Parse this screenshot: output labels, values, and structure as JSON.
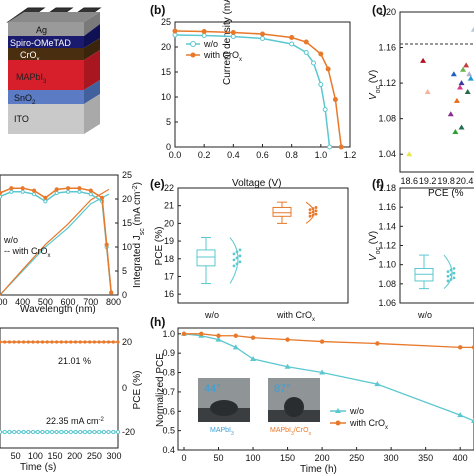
{
  "panels": {
    "a": {
      "layers": [
        "Ag",
        "Spiro-OMeTAD",
        "CrO",
        "x",
        "MAPbI",
        "3",
        "SnO",
        "2",
        "ITO"
      ]
    },
    "b": {
      "letter": "(b)",
      "ylabel": "Current density (mA cm",
      "ylabel_sup": "-2",
      "ylabel_close": ")",
      "xlabel": "Voltage (V)",
      "legend": [
        "w/o",
        "with CrO",
        "x"
      ],
      "y_ticks": [
        "0",
        "5",
        "10",
        "15",
        "20",
        "25"
      ],
      "x_ticks": [
        "0.0",
        "0.2",
        "0.4",
        "0.6",
        "0.8",
        "1.0",
        "1.2"
      ]
    },
    "c": {
      "letter": "(c)",
      "ylabel": "V",
      "ylabel_sub": "oc",
      "ylabel_unit": " (V)",
      "xlabel": "PCE (%",
      "y_ticks": [
        "1.04",
        "1.08",
        "1.12",
        "1.16",
        "1.20"
      ],
      "x_ticks": [
        "18.6",
        "19.2",
        "19.8",
        "20.4",
        "2"
      ]
    },
    "d": {
      "legend": [
        "w/o",
        "with CrO",
        "x"
      ],
      "xlabel": "Wavelength (nm)",
      "x_ticks": [
        "300",
        "400",
        "500",
        "600",
        "700",
        "800"
      ],
      "right_ticks": [
        "0",
        "5",
        "10",
        "15",
        "20",
        "25"
      ],
      "right_label": "Integrated J",
      "right_label_sub": "sc",
      "right_label_unit": " (mA cm",
      "right_label_sup": "-2",
      "right_label_close": ")"
    },
    "e": {
      "letter": "(e)",
      "ylabel": "PCE (%)",
      "y_ticks": [
        "16",
        "17",
        "18",
        "19",
        "20",
        "21",
        "22"
      ],
      "categories": [
        "w/o",
        "with CrO",
        "x"
      ]
    },
    "f": {
      "letter": "(f)",
      "ylabel": "V",
      "ylabel_sub": "oc",
      "ylabel_unit": " (V)",
      "y_ticks": [
        "1.06",
        "1.08",
        "1.10",
        "1.12",
        "1.14",
        "1.16",
        "1.18"
      ],
      "categories": [
        "w/o"
      ]
    },
    "g": {
      "xlabel": "Time (s)",
      "x_ticks": [
        "50",
        "100",
        "150",
        "200",
        "250",
        "300"
      ],
      "right_label": "PCE (%)",
      "right_ticks": [
        "20",
        "0",
        "-20"
      ],
      "annot_pce": "21.01 %",
      "annot_jsc": "22.35 mA cm",
      "annot_jsc_sup": "-2"
    },
    "h": {
      "letter": "(h)",
      "ylabel": "Normalized PCE",
      "xlabel": "Time (h)",
      "x_ticks": [
        "0",
        "50",
        "100",
        "150",
        "200",
        "250",
        "300",
        "350",
        "400"
      ],
      "y_ticks": [
        "0.4",
        "0.5",
        "0.6",
        "0.7",
        "0.8",
        "0.9",
        "1.0"
      ],
      "legend": [
        "w/o",
        "with CrO",
        "x"
      ],
      "angle1": "44°",
      "angle2": "87°",
      "img1_label": "MAPbI",
      "img1_sub": "3",
      "img2_label": "MAPbI",
      "img2_sub": "3",
      "img2_label_tail": "/CrO",
      "img2_label_sub2": "x"
    }
  },
  "colors": {
    "wo": "#5bc8cf",
    "with": "#e8782a"
  },
  "chart_data": [
    {
      "type": "line",
      "panel": "b",
      "xlabel": "Voltage (V)",
      "ylabel": "Current density (mA cm-2)",
      "xlim": [
        0,
        1.2
      ],
      "ylim": [
        0,
        25
      ],
      "series": [
        {
          "name": "w/o",
          "x": [
            0,
            0.2,
            0.4,
            0.6,
            0.8,
            0.9,
            0.95,
            1.0,
            1.03,
            1.06
          ],
          "values": [
            22.4,
            22.3,
            22.1,
            21.7,
            20.6,
            18.9,
            16.8,
            12.5,
            7.5,
            0
          ]
        },
        {
          "name": "with CrOx",
          "x": [
            0,
            0.2,
            0.4,
            0.6,
            0.8,
            0.9,
            1.0,
            1.05,
            1.1,
            1.14
          ],
          "values": [
            23.2,
            23.1,
            22.9,
            22.6,
            21.9,
            21.0,
            18.6,
            15.6,
            9.5,
            0
          ]
        }
      ]
    },
    {
      "type": "scatter",
      "panel": "c",
      "xlabel": "PCE (%)",
      "ylabel": "Voc (V)",
      "xlim": [
        18.3,
        20.9
      ],
      "ylim": [
        1.02,
        1.2
      ],
      "x": [
        18.6,
        19.05,
        19.2,
        19.95,
        20.05,
        20.1,
        20.15,
        20.25,
        20.3,
        20.35,
        20.45,
        20.5,
        20.55,
        20.6,
        20.7,
        20.3
      ],
      "values": [
        1.04,
        1.145,
        1.11,
        1.085,
        1.13,
        1.065,
        1.1,
        1.115,
        1.12,
        1.135,
        1.14,
        1.11,
        1.13,
        1.125,
        1.18,
        1.07
      ]
    },
    {
      "type": "line",
      "panel": "d",
      "xlabel": "Wavelength (nm)",
      "xlim": [
        300,
        800
      ],
      "series": [
        {
          "name": "w/o Jsc",
          "x": [
            300,
            400,
            500,
            600,
            700,
            780
          ],
          "values": [
            0,
            5,
            10,
            14,
            19,
            21
          ]
        },
        {
          "name": "with CrOx Jsc",
          "x": [
            300,
            400,
            500,
            600,
            700,
            780
          ],
          "values": [
            0,
            5.3,
            10.5,
            14.8,
            19.8,
            22
          ]
        },
        {
          "name": "w/o EQE",
          "x": [
            300,
            350,
            400,
            450,
            500,
            550,
            600,
            650,
            700,
            750,
            770,
            790
          ],
          "values": [
            0.82,
            0.86,
            0.86,
            0.84,
            0.78,
            0.85,
            0.86,
            0.86,
            0.84,
            0.78,
            0.4,
            0.02
          ]
        },
        {
          "name": "with CrOx EQE",
          "x": [
            300,
            350,
            400,
            450,
            500,
            550,
            600,
            650,
            700,
            750,
            770,
            790
          ],
          "values": [
            0.85,
            0.89,
            0.89,
            0.87,
            0.81,
            0.88,
            0.89,
            0.89,
            0.87,
            0.81,
            0.42,
            0.02
          ]
        }
      ]
    },
    {
      "type": "box",
      "panel": "e",
      "ylabel": "PCE (%)",
      "ylim": [
        15.5,
        22
      ],
      "categories": [
        "w/o",
        "with CrOx"
      ],
      "boxes": [
        {
          "min": 16.6,
          "q1": 17.6,
          "median": 18.1,
          "q3": 18.5,
          "max": 19.2
        },
        {
          "min": 20.0,
          "q1": 20.4,
          "median": 20.6,
          "q3": 20.9,
          "max": 21.2
        }
      ]
    },
    {
      "type": "box",
      "panel": "f",
      "ylabel": "Voc (V)",
      "ylim": [
        1.06,
        1.18
      ],
      "categories": [
        "w/o"
      ],
      "boxes": [
        {
          "min": 1.075,
          "q1": 1.083,
          "median": 1.09,
          "q3": 1.096,
          "max": 1.11
        }
      ]
    },
    {
      "type": "line",
      "panel": "g",
      "xlabel": "Time (s)",
      "xlim": [
        0,
        300
      ],
      "series": [
        {
          "name": "PCE",
          "x": [
            0,
            300
          ],
          "values": [
            21.01,
            21.01
          ]
        },
        {
          "name": "Jsc",
          "x": [
            0,
            300
          ],
          "values": [
            22.35,
            22.35
          ]
        }
      ]
    },
    {
      "type": "line",
      "panel": "h",
      "xlabel": "Time (h)",
      "ylabel": "Normalized PCE",
      "xlim": [
        0,
        420
      ],
      "ylim": [
        0.4,
        1.03
      ],
      "series": [
        {
          "name": "w/o",
          "x": [
            0,
            25,
            50,
            75,
            100,
            150,
            200,
            280,
            400,
            420
          ],
          "values": [
            1.0,
            0.99,
            0.97,
            0.93,
            0.87,
            0.83,
            0.8,
            0.74,
            0.58,
            0.55
          ]
        },
        {
          "name": "with CrOx",
          "x": [
            0,
            25,
            50,
            75,
            100,
            150,
            200,
            280,
            400,
            420
          ],
          "values": [
            1.0,
            1.0,
            0.99,
            0.99,
            0.98,
            0.97,
            0.96,
            0.95,
            0.93,
            0.93
          ]
        }
      ]
    }
  ]
}
